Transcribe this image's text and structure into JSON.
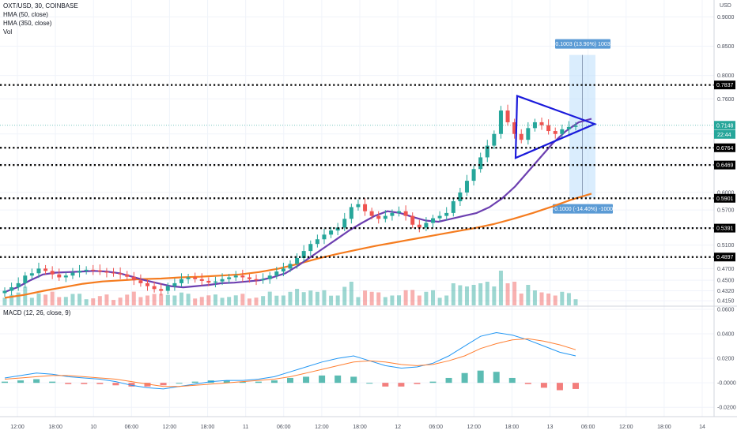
{
  "header": {
    "symbol": "OXT/USD, 30, COINBASE",
    "hma50_label": "HMA (50, close)",
    "hma350_label": "HMA (350, close)",
    "vol_label": "Vol",
    "macd_label": "MACD (12, 26, close, 9)",
    "currency": "USD"
  },
  "colors": {
    "up": "#26a69a",
    "down": "#ef5350",
    "hma50": "#6c3fb0",
    "hma350": "#f57c1f",
    "triangle": "#1a1adb",
    "range_box": "#bbdefb",
    "range_tag": "#5b9bd5",
    "macd_line": "#2196f3",
    "signal_line": "#ff7f32",
    "dotted_line": "#000000"
  },
  "chart_data": [
    {
      "type": "candlestick",
      "title": "OXT/USD, 30, COINBASE",
      "ylabel": "USD",
      "ylim": [
        0.4125,
        0.91
      ],
      "price_axis_ticks": [
        "0.9000",
        "0.8500",
        "0.8000",
        "0.7600",
        "0.7000",
        "0.6500",
        "0.6000",
        "0.5700",
        "0.5400",
        "0.5100",
        "0.4700",
        "0.4500",
        "0.4320",
        "0.4150"
      ],
      "time_axis_ticks": [
        "12:00",
        "18:00",
        "10",
        "06:00",
        "12:00",
        "18:00",
        "11",
        "06:00",
        "12:00",
        "18:00",
        "12",
        "06:00",
        "12:00",
        "18:00",
        "13",
        "06:00",
        "12:00",
        "18:00",
        "14"
      ],
      "close_series_approx": [
        0.432,
        0.438,
        0.445,
        0.458,
        0.462,
        0.47,
        0.466,
        0.46,
        0.455,
        0.458,
        0.463,
        0.466,
        0.468,
        0.467,
        0.465,
        0.463,
        0.462,
        0.46,
        0.456,
        0.45,
        0.445,
        0.44,
        0.435,
        0.432,
        0.44,
        0.445,
        0.452,
        0.455,
        0.452,
        0.449,
        0.446,
        0.448,
        0.452,
        0.455,
        0.458,
        0.455,
        0.452,
        0.45,
        0.452,
        0.458,
        0.465,
        0.47,
        0.478,
        0.488,
        0.5,
        0.512,
        0.52,
        0.528,
        0.535,
        0.54,
        0.555,
        0.575,
        0.58,
        0.568,
        0.56,
        0.555,
        0.56,
        0.565,
        0.568,
        0.56,
        0.545,
        0.54,
        0.548,
        0.556,
        0.56,
        0.565,
        0.585,
        0.6,
        0.62,
        0.64,
        0.66,
        0.68,
        0.7,
        0.74,
        0.72,
        0.7,
        0.69,
        0.71,
        0.72,
        0.715,
        0.705,
        0.7,
        0.708,
        0.712,
        0.714
      ],
      "hma50_approx": [
        0.43,
        0.438,
        0.45,
        0.46,
        0.463,
        0.464,
        0.465,
        0.466,
        0.465,
        0.462,
        0.456,
        0.45,
        0.445,
        0.44,
        0.438,
        0.44,
        0.442,
        0.445,
        0.446,
        0.448,
        0.45,
        0.455,
        0.462,
        0.475,
        0.49,
        0.505,
        0.52,
        0.535,
        0.548,
        0.56,
        0.568,
        0.565,
        0.558,
        0.552,
        0.55,
        0.555,
        0.56,
        0.565,
        0.575,
        0.59,
        0.61,
        0.635,
        0.66,
        0.685,
        0.705,
        0.72,
        0.726
      ],
      "hma350_approx": [
        0.42,
        0.425,
        0.432,
        0.438,
        0.444,
        0.448,
        0.45,
        0.452,
        0.453,
        0.455,
        0.456,
        0.458,
        0.46,
        0.464,
        0.47,
        0.478,
        0.487,
        0.495,
        0.502,
        0.509,
        0.515,
        0.521,
        0.527,
        0.533,
        0.539,
        0.546,
        0.555,
        0.565,
        0.576,
        0.588,
        0.598
      ],
      "horizontal_levels": [
        0.7837,
        0.6764,
        0.6469,
        0.5901,
        0.5391,
        0.4897
      ],
      "level_labels": [
        "0.7837",
        "0.6764",
        "0.6469",
        "0.5901",
        "0.5391",
        "0.4897"
      ],
      "current_price_label": "0.7148",
      "countdown_label": "22:44",
      "annotations": {
        "range_up_label": "0.1003 (13.90%) 1003",
        "range_down_label": "-0.1000 (-14.40%) -1000",
        "triangle_pattern": "symmetrical triangle"
      },
      "grid": true,
      "legend": "top-left"
    },
    {
      "type": "line",
      "title": "MACD (12, 26, close, 9)",
      "ylim": [
        -0.025,
        0.06
      ],
      "axis_ticks": [
        "0.0600",
        "0.0400",
        "0.0200",
        "-0.0000",
        "-0.0200"
      ],
      "series": [
        {
          "name": "MACD",
          "values": [
            0.004,
            0.006,
            0.008,
            0.007,
            0.005,
            0.004,
            0.003,
            0.001,
            -0.002,
            -0.004,
            -0.005,
            -0.003,
            -0.001,
            0.001,
            0.002,
            0.002,
            0.003,
            0.005,
            0.009,
            0.013,
            0.017,
            0.02,
            0.022,
            0.018,
            0.014,
            0.012,
            0.013,
            0.016,
            0.022,
            0.03,
            0.038,
            0.041,
            0.039,
            0.035,
            0.03,
            0.025,
            0.022
          ]
        },
        {
          "name": "Signal",
          "values": [
            0.003,
            0.004,
            0.005,
            0.006,
            0.006,
            0.005,
            0.004,
            0.003,
            0.001,
            -0.001,
            -0.003,
            -0.003,
            -0.002,
            -0.001,
            0.0,
            0.001,
            0.002,
            0.003,
            0.005,
            0.008,
            0.011,
            0.014,
            0.017,
            0.018,
            0.017,
            0.015,
            0.014,
            0.015,
            0.018,
            0.022,
            0.028,
            0.032,
            0.035,
            0.036,
            0.034,
            0.031,
            0.027
          ]
        }
      ],
      "legend": "top-left"
    }
  ]
}
